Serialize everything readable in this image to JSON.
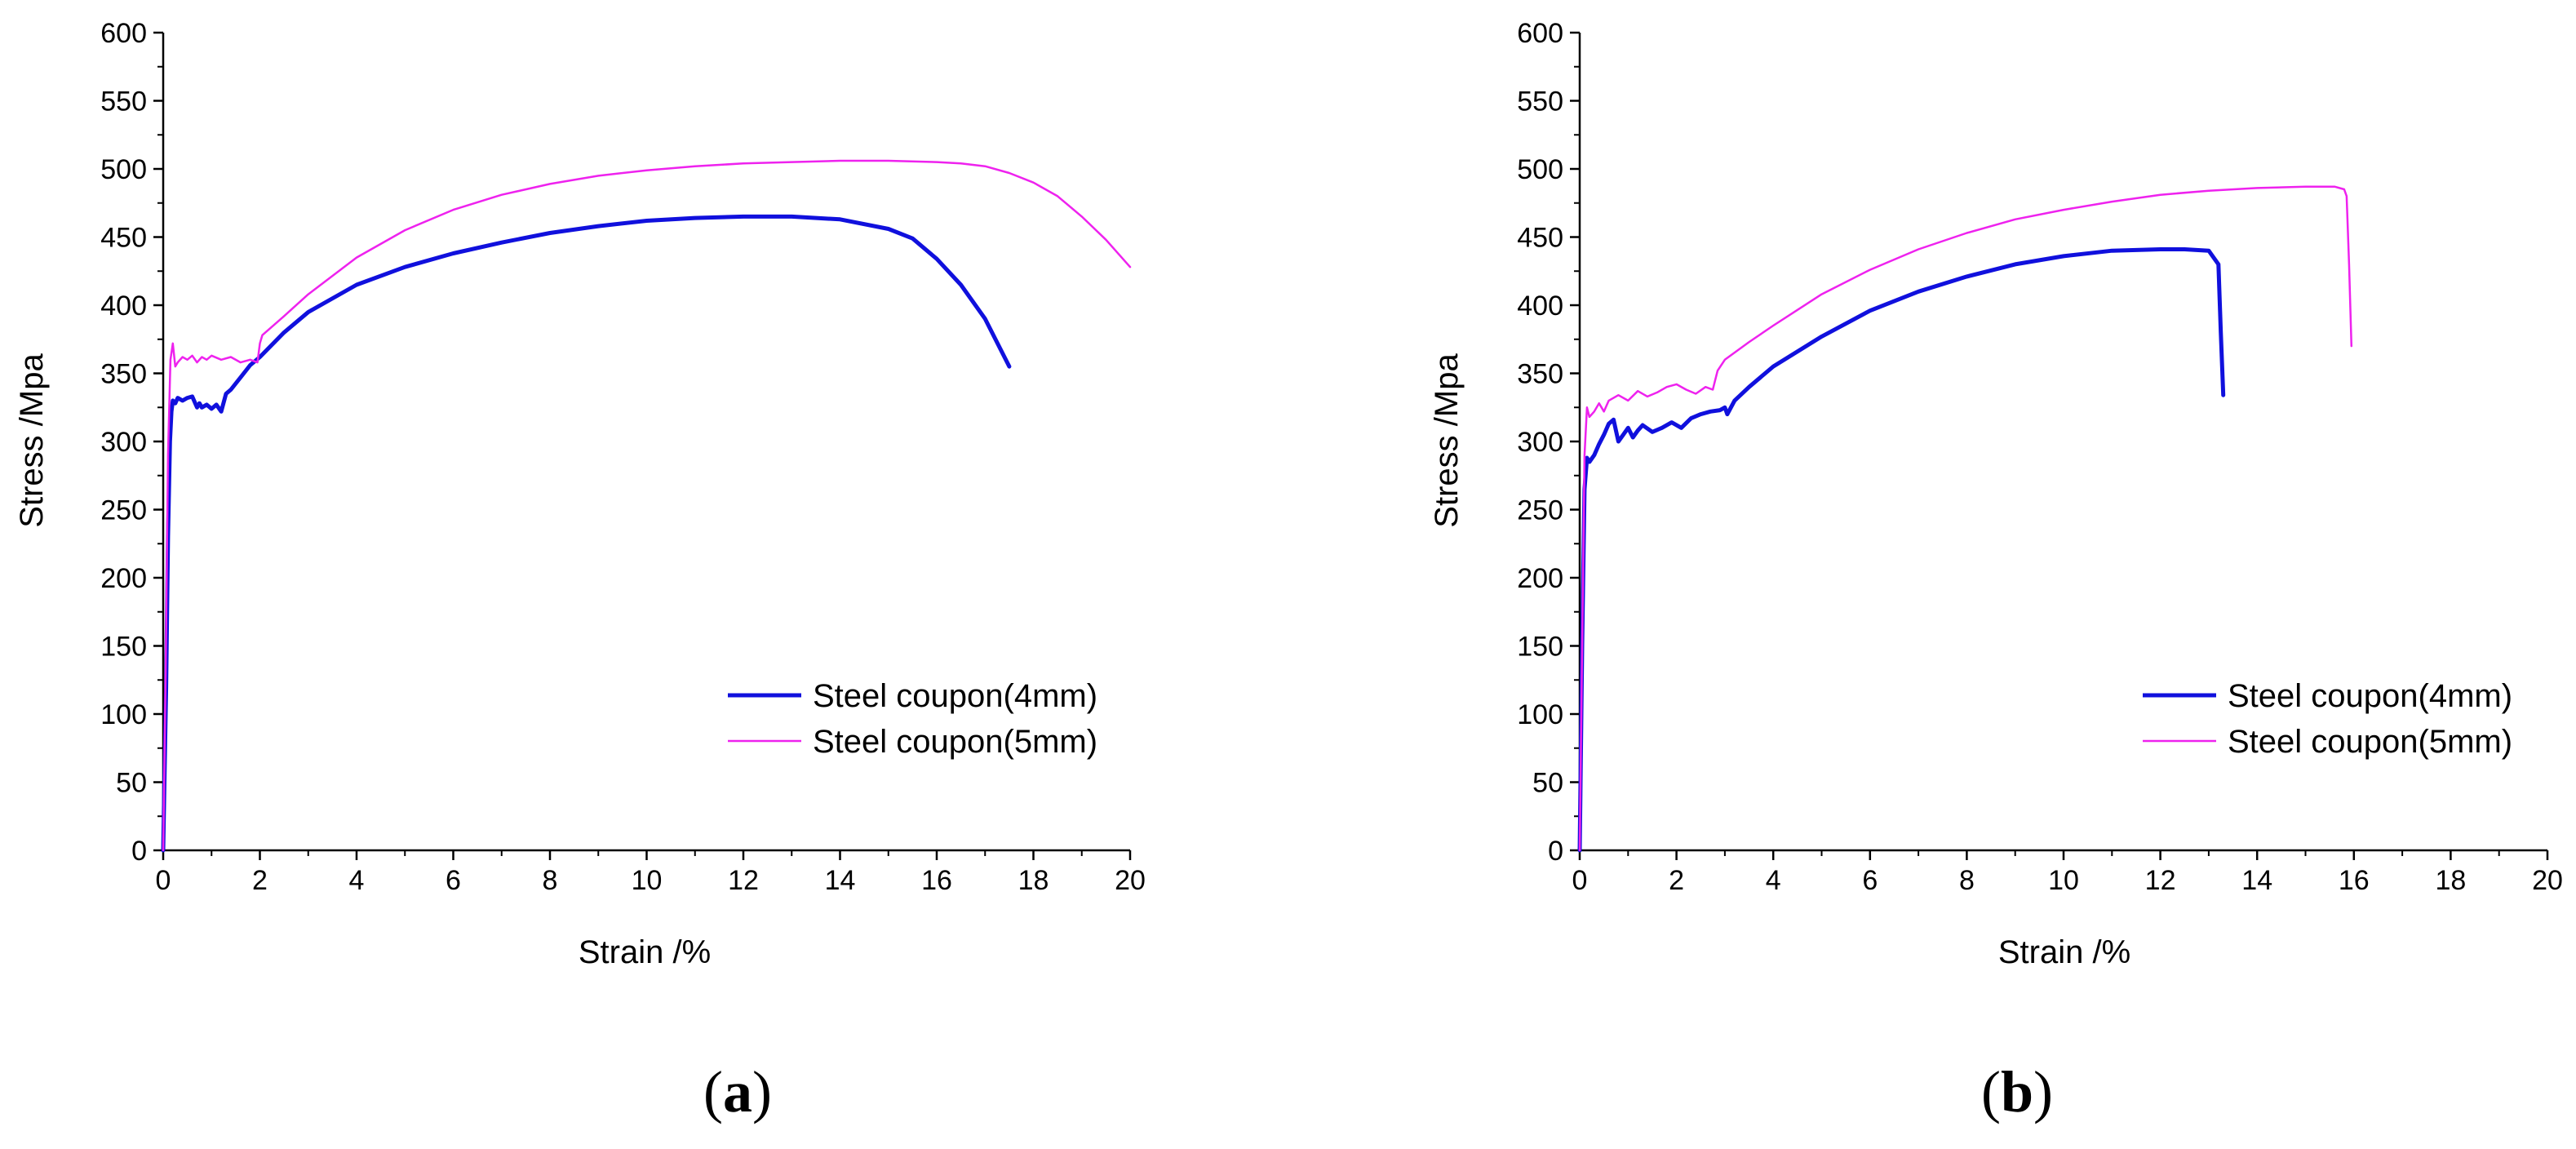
{
  "chart_data": [
    {
      "type": "line",
      "panel_label": "a",
      "xlabel": "Strain /%",
      "ylabel": "Stress /Mpa",
      "xlim": [
        0,
        20
      ],
      "ylim": [
        0,
        600
      ],
      "xticks": [
        0,
        2,
        4,
        6,
        8,
        10,
        12,
        14,
        16,
        18,
        20
      ],
      "yticks": [
        0,
        50,
        100,
        150,
        200,
        250,
        300,
        350,
        400,
        450,
        500,
        550,
        600
      ],
      "legend_position": "bottom-right",
      "series": [
        {
          "name": "Steel coupon(4mm)",
          "color": "#1010dd",
          "x": [
            0,
            0.06,
            0.1,
            0.14,
            0.17,
            0.2,
            0.25,
            0.3,
            0.4,
            0.5,
            0.6,
            0.7,
            0.75,
            0.8,
            0.9,
            1.0,
            1.1,
            1.2,
            1.3,
            1.4,
            1.6,
            1.8,
            2.0,
            2.5,
            3,
            4,
            5,
            6,
            7,
            8,
            9,
            10,
            11,
            12,
            13,
            14,
            15,
            15.5,
            16,
            16.5,
            17,
            17.5
          ],
          "y": [
            0,
            120,
            230,
            300,
            322,
            330,
            328,
            332,
            330,
            332,
            333,
            325,
            328,
            325,
            327,
            324,
            327,
            322,
            335,
            338,
            347,
            356,
            362,
            380,
            395,
            415,
            428,
            438,
            446,
            453,
            458,
            462,
            464,
            465,
            465,
            463,
            456,
            449,
            434,
            415,
            390,
            355
          ]
        },
        {
          "name": "Steel coupon(5mm)",
          "color": "#ee22ee",
          "x": [
            0,
            0.05,
            0.1,
            0.15,
            0.2,
            0.25,
            0.3,
            0.4,
            0.5,
            0.6,
            0.7,
            0.8,
            0.9,
            1.0,
            1.2,
            1.4,
            1.6,
            1.8,
            1.95,
            2.0,
            2.05,
            2.5,
            3,
            4,
            5,
            6,
            7,
            8,
            9,
            10,
            11,
            12,
            13,
            14,
            15,
            16,
            16.5,
            17,
            17.5,
            18,
            18.5,
            19,
            19.5,
            20
          ],
          "y": [
            0,
            130,
            290,
            360,
            372,
            355,
            358,
            362,
            360,
            363,
            358,
            362,
            360,
            363,
            360,
            362,
            358,
            360,
            358,
            372,
            378,
            392,
            408,
            435,
            455,
            470,
            481,
            489,
            495,
            499,
            502,
            504,
            505,
            506,
            506,
            505,
            504,
            502,
            497,
            490,
            480,
            465,
            448,
            428
          ]
        }
      ]
    },
    {
      "type": "line",
      "panel_label": "b",
      "xlabel": "Strain /%",
      "ylabel": "Stress /Mpa",
      "xlim": [
        0,
        20
      ],
      "ylim": [
        0,
        600
      ],
      "xticks": [
        0,
        2,
        4,
        6,
        8,
        10,
        12,
        14,
        16,
        18,
        20
      ],
      "yticks": [
        0,
        50,
        100,
        150,
        200,
        250,
        300,
        350,
        400,
        450,
        500,
        550,
        600
      ],
      "legend_position": "bottom-right",
      "series": [
        {
          "name": "Steel coupon(4mm)",
          "color": "#1010dd",
          "x": [
            0,
            0.05,
            0.1,
            0.15,
            0.2,
            0.3,
            0.4,
            0.5,
            0.6,
            0.7,
            0.8,
            0.9,
            1.0,
            1.1,
            1.2,
            1.3,
            1.5,
            1.7,
            1.9,
            2.1,
            2.3,
            2.5,
            2.7,
            2.9,
            3.0,
            3.05,
            3.2,
            3.5,
            4,
            5,
            6,
            7,
            8,
            9,
            10,
            11,
            12,
            12.5,
            13.0,
            13.2,
            13.25,
            13.3
          ],
          "y": [
            0,
            150,
            265,
            288,
            285,
            290,
            298,
            305,
            313,
            316,
            300,
            305,
            310,
            303,
            308,
            312,
            307,
            310,
            314,
            310,
            317,
            320,
            322,
            323,
            325,
            320,
            330,
            340,
            355,
            377,
            396,
            410,
            421,
            430,
            436,
            440,
            441,
            441,
            440,
            430,
            380,
            334
          ]
        },
        {
          "name": "Steel coupon(5mm)",
          "color": "#ee22ee",
          "x": [
            0,
            0.05,
            0.1,
            0.15,
            0.2,
            0.3,
            0.4,
            0.5,
            0.6,
            0.8,
            1.0,
            1.2,
            1.4,
            1.6,
            1.8,
            2.0,
            2.2,
            2.4,
            2.6,
            2.75,
            2.8,
            2.85,
            3.0,
            3.5,
            4,
            5,
            6,
            7,
            8,
            9,
            10,
            11,
            12,
            13,
            14,
            15,
            15.6,
            15.8,
            15.85,
            15.9,
            15.95
          ],
          "y": [
            0,
            150,
            290,
            325,
            318,
            322,
            328,
            322,
            330,
            334,
            330,
            337,
            333,
            336,
            340,
            342,
            338,
            335,
            340,
            338,
            345,
            352,
            360,
            373,
            385,
            408,
            426,
            441,
            453,
            463,
            470,
            476,
            481,
            484,
            486,
            487,
            487,
            485,
            480,
            430,
            370
          ]
        }
      ]
    }
  ]
}
